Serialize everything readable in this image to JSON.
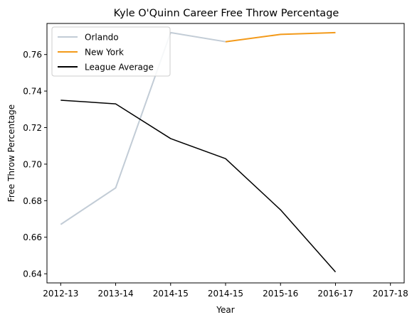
{
  "chart_data": {
    "type": "line",
    "title": "Kyle O'Quinn Career Free Throw Percentage",
    "xlabel": "Year",
    "ylabel": "Free Throw Percentage",
    "x_tick_labels": [
      "2012-13",
      "2013-14",
      "2014-15",
      "2014-15",
      "2015-16",
      "2016-17",
      "2017-18"
    ],
    "xlim": [
      -0.25,
      6.25
    ],
    "ylim": [
      0.635,
      0.777
    ],
    "y_ticks": [
      0.64,
      0.66,
      0.68,
      0.7,
      0.72,
      0.74,
      0.76
    ],
    "y_tick_labels": [
      "0.64",
      "0.66",
      "0.68",
      "0.70",
      "0.72",
      "0.74",
      "0.76"
    ],
    "grid": false,
    "legend_position": "top-left",
    "series": [
      {
        "name": "Orlando",
        "color": "#c2ccd6",
        "x": [
          0,
          1,
          2,
          3
        ],
        "y": [
          0.667,
          0.687,
          0.772,
          0.767
        ]
      },
      {
        "name": "New York",
        "color": "#f39a1a",
        "x": [
          3,
          4,
          5
        ],
        "y": [
          0.767,
          0.771,
          0.772
        ]
      },
      {
        "name": "League Average",
        "color": "#000000",
        "x": [
          0,
          1,
          2,
          3,
          4,
          5
        ],
        "y": [
          0.735,
          0.733,
          0.714,
          0.703,
          0.675,
          0.641
        ]
      }
    ]
  }
}
